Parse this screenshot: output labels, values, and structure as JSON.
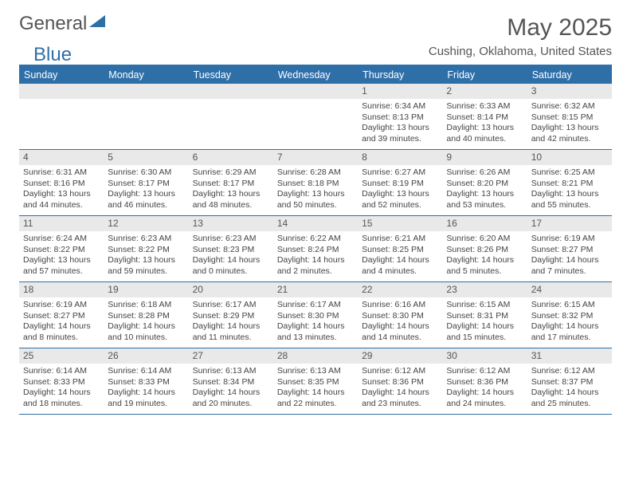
{
  "logo": {
    "text1": "General",
    "text2": "Blue",
    "fill": "#2f6fa8"
  },
  "title": "May 2025",
  "subtitle": "Cushing, Oklahoma, United States",
  "accent_color": "#2f6fa8",
  "daynum_bg": "#e9e9e9",
  "background": "#ffffff",
  "dayNames": [
    "Sunday",
    "Monday",
    "Tuesday",
    "Wednesday",
    "Thursday",
    "Friday",
    "Saturday"
  ],
  "weeks": [
    [
      {
        "n": "",
        "sr": "",
        "ss": "",
        "dl": ""
      },
      {
        "n": "",
        "sr": "",
        "ss": "",
        "dl": ""
      },
      {
        "n": "",
        "sr": "",
        "ss": "",
        "dl": ""
      },
      {
        "n": "",
        "sr": "",
        "ss": "",
        "dl": ""
      },
      {
        "n": "1",
        "sr": "Sunrise: 6:34 AM",
        "ss": "Sunset: 8:13 PM",
        "dl": "Daylight: 13 hours and 39 minutes."
      },
      {
        "n": "2",
        "sr": "Sunrise: 6:33 AM",
        "ss": "Sunset: 8:14 PM",
        "dl": "Daylight: 13 hours and 40 minutes."
      },
      {
        "n": "3",
        "sr": "Sunrise: 6:32 AM",
        "ss": "Sunset: 8:15 PM",
        "dl": "Daylight: 13 hours and 42 minutes."
      }
    ],
    [
      {
        "n": "4",
        "sr": "Sunrise: 6:31 AM",
        "ss": "Sunset: 8:16 PM",
        "dl": "Daylight: 13 hours and 44 minutes."
      },
      {
        "n": "5",
        "sr": "Sunrise: 6:30 AM",
        "ss": "Sunset: 8:17 PM",
        "dl": "Daylight: 13 hours and 46 minutes."
      },
      {
        "n": "6",
        "sr": "Sunrise: 6:29 AM",
        "ss": "Sunset: 8:17 PM",
        "dl": "Daylight: 13 hours and 48 minutes."
      },
      {
        "n": "7",
        "sr": "Sunrise: 6:28 AM",
        "ss": "Sunset: 8:18 PM",
        "dl": "Daylight: 13 hours and 50 minutes."
      },
      {
        "n": "8",
        "sr": "Sunrise: 6:27 AM",
        "ss": "Sunset: 8:19 PM",
        "dl": "Daylight: 13 hours and 52 minutes."
      },
      {
        "n": "9",
        "sr": "Sunrise: 6:26 AM",
        "ss": "Sunset: 8:20 PM",
        "dl": "Daylight: 13 hours and 53 minutes."
      },
      {
        "n": "10",
        "sr": "Sunrise: 6:25 AM",
        "ss": "Sunset: 8:21 PM",
        "dl": "Daylight: 13 hours and 55 minutes."
      }
    ],
    [
      {
        "n": "11",
        "sr": "Sunrise: 6:24 AM",
        "ss": "Sunset: 8:22 PM",
        "dl": "Daylight: 13 hours and 57 minutes."
      },
      {
        "n": "12",
        "sr": "Sunrise: 6:23 AM",
        "ss": "Sunset: 8:22 PM",
        "dl": "Daylight: 13 hours and 59 minutes."
      },
      {
        "n": "13",
        "sr": "Sunrise: 6:23 AM",
        "ss": "Sunset: 8:23 PM",
        "dl": "Daylight: 14 hours and 0 minutes."
      },
      {
        "n": "14",
        "sr": "Sunrise: 6:22 AM",
        "ss": "Sunset: 8:24 PM",
        "dl": "Daylight: 14 hours and 2 minutes."
      },
      {
        "n": "15",
        "sr": "Sunrise: 6:21 AM",
        "ss": "Sunset: 8:25 PM",
        "dl": "Daylight: 14 hours and 4 minutes."
      },
      {
        "n": "16",
        "sr": "Sunrise: 6:20 AM",
        "ss": "Sunset: 8:26 PM",
        "dl": "Daylight: 14 hours and 5 minutes."
      },
      {
        "n": "17",
        "sr": "Sunrise: 6:19 AM",
        "ss": "Sunset: 8:27 PM",
        "dl": "Daylight: 14 hours and 7 minutes."
      }
    ],
    [
      {
        "n": "18",
        "sr": "Sunrise: 6:19 AM",
        "ss": "Sunset: 8:27 PM",
        "dl": "Daylight: 14 hours and 8 minutes."
      },
      {
        "n": "19",
        "sr": "Sunrise: 6:18 AM",
        "ss": "Sunset: 8:28 PM",
        "dl": "Daylight: 14 hours and 10 minutes."
      },
      {
        "n": "20",
        "sr": "Sunrise: 6:17 AM",
        "ss": "Sunset: 8:29 PM",
        "dl": "Daylight: 14 hours and 11 minutes."
      },
      {
        "n": "21",
        "sr": "Sunrise: 6:17 AM",
        "ss": "Sunset: 8:30 PM",
        "dl": "Daylight: 14 hours and 13 minutes."
      },
      {
        "n": "22",
        "sr": "Sunrise: 6:16 AM",
        "ss": "Sunset: 8:30 PM",
        "dl": "Daylight: 14 hours and 14 minutes."
      },
      {
        "n": "23",
        "sr": "Sunrise: 6:15 AM",
        "ss": "Sunset: 8:31 PM",
        "dl": "Daylight: 14 hours and 15 minutes."
      },
      {
        "n": "24",
        "sr": "Sunrise: 6:15 AM",
        "ss": "Sunset: 8:32 PM",
        "dl": "Daylight: 14 hours and 17 minutes."
      }
    ],
    [
      {
        "n": "25",
        "sr": "Sunrise: 6:14 AM",
        "ss": "Sunset: 8:33 PM",
        "dl": "Daylight: 14 hours and 18 minutes."
      },
      {
        "n": "26",
        "sr": "Sunrise: 6:14 AM",
        "ss": "Sunset: 8:33 PM",
        "dl": "Daylight: 14 hours and 19 minutes."
      },
      {
        "n": "27",
        "sr": "Sunrise: 6:13 AM",
        "ss": "Sunset: 8:34 PM",
        "dl": "Daylight: 14 hours and 20 minutes."
      },
      {
        "n": "28",
        "sr": "Sunrise: 6:13 AM",
        "ss": "Sunset: 8:35 PM",
        "dl": "Daylight: 14 hours and 22 minutes."
      },
      {
        "n": "29",
        "sr": "Sunrise: 6:12 AM",
        "ss": "Sunset: 8:36 PM",
        "dl": "Daylight: 14 hours and 23 minutes."
      },
      {
        "n": "30",
        "sr": "Sunrise: 6:12 AM",
        "ss": "Sunset: 8:36 PM",
        "dl": "Daylight: 14 hours and 24 minutes."
      },
      {
        "n": "31",
        "sr": "Sunrise: 6:12 AM",
        "ss": "Sunset: 8:37 PM",
        "dl": "Daylight: 14 hours and 25 minutes."
      }
    ]
  ]
}
